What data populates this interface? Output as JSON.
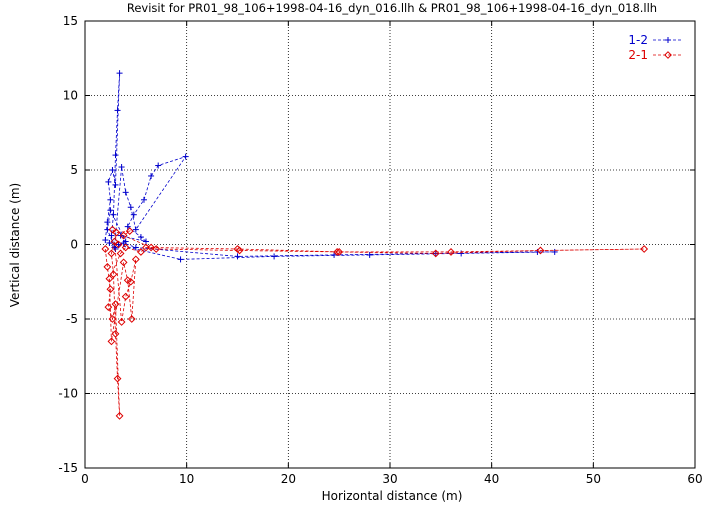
{
  "chart_data": {
    "type": "scatter",
    "title": "Revisit for PR01_98_106+1998-04-16_dyn_016.llh & PR01_98_106+1998-04-16_dyn_018.llh",
    "xlabel": "Horizontal distance (m)",
    "ylabel": "Vertical distance (m)",
    "xlim": [
      0,
      60
    ],
    "ylim": [
      -15,
      15
    ],
    "xticks": [
      "0",
      "10",
      "20",
      "30",
      "40",
      "50",
      "60"
    ],
    "yticks": [
      "-15",
      "-10",
      "-5",
      "0",
      "5",
      "10",
      "15"
    ],
    "grid": true,
    "legend_position": "top-right",
    "series": [
      {
        "name": "1-2",
        "color": "#0000cc",
        "marker": "plus",
        "linestyle": "dashed",
        "points": [
          [
            2.0,
            0.3
          ],
          [
            2.2,
            1.5
          ],
          [
            2.5,
            3.0
          ],
          [
            2.3,
            4.2
          ],
          [
            2.7,
            5.0
          ],
          [
            3.0,
            4.0
          ],
          [
            3.4,
            11.5
          ],
          [
            3.2,
            9.0
          ],
          [
            3.0,
            6.0
          ],
          [
            2.8,
            2.0
          ],
          [
            2.6,
            0.6
          ],
          [
            2.9,
            -0.2
          ],
          [
            3.6,
            5.2
          ],
          [
            4.0,
            3.5
          ],
          [
            4.5,
            2.5
          ],
          [
            5.0,
            1.0
          ],
          [
            9.9,
            5.9
          ],
          [
            7.2,
            5.3
          ],
          [
            6.5,
            4.6
          ],
          [
            5.8,
            3.0
          ],
          [
            4.8,
            2.0
          ],
          [
            4.2,
            1.2
          ],
          [
            5.5,
            0.5
          ],
          [
            6.0,
            0.2
          ],
          [
            3.5,
            0.6
          ],
          [
            4.0,
            0.2
          ],
          [
            2.5,
            2.3
          ],
          [
            2.2,
            1.0
          ],
          [
            3.0,
            -0.3
          ],
          [
            2.4,
            0.1
          ],
          [
            9.4,
            -1.0
          ],
          [
            18.6,
            -0.8
          ],
          [
            28.0,
            -0.7
          ],
          [
            37.0,
            -0.6
          ],
          [
            46.2,
            -0.5
          ],
          [
            44.5,
            -0.5
          ],
          [
            34.5,
            -0.6
          ],
          [
            24.5,
            -0.7
          ],
          [
            15.0,
            -0.8
          ],
          [
            5.0,
            -0.2
          ],
          [
            3.8,
            0.1
          ],
          [
            3.3,
            0.0
          ]
        ]
      },
      {
        "name": "2-1",
        "color": "#dd0000",
        "marker": "diamond",
        "linestyle": "dashed",
        "points": [
          [
            2.0,
            -0.3
          ],
          [
            2.2,
            -1.5
          ],
          [
            2.5,
            -3.0
          ],
          [
            2.3,
            -4.2
          ],
          [
            2.7,
            -5.0
          ],
          [
            3.0,
            -4.0
          ],
          [
            3.4,
            -11.5
          ],
          [
            3.2,
            -9.0
          ],
          [
            3.0,
            -6.0
          ],
          [
            2.8,
            -2.0
          ],
          [
            2.6,
            -0.6
          ],
          [
            2.9,
            0.2
          ],
          [
            3.6,
            -5.2
          ],
          [
            4.0,
            -3.5
          ],
          [
            4.5,
            -2.5
          ],
          [
            5.0,
            -1.0
          ],
          [
            4.6,
            -5.0
          ],
          [
            4.2,
            -2.4
          ],
          [
            3.8,
            -1.2
          ],
          [
            2.6,
            -6.5
          ],
          [
            2.4,
            -2.3
          ],
          [
            3.5,
            -0.6
          ],
          [
            4.0,
            -0.2
          ],
          [
            5.5,
            -0.5
          ],
          [
            6.0,
            -0.2
          ],
          [
            7.0,
            -0.3
          ],
          [
            15.2,
            -0.4
          ],
          [
            24.8,
            -0.5
          ],
          [
            34.5,
            -0.6
          ],
          [
            44.8,
            -0.4
          ],
          [
            55.0,
            -0.3
          ],
          [
            36.0,
            -0.5
          ],
          [
            25.0,
            -0.5
          ],
          [
            15.0,
            -0.3
          ],
          [
            6.5,
            -0.2
          ],
          [
            3.8,
            0.6
          ],
          [
            4.4,
            0.9
          ],
          [
            3.1,
            0.8
          ],
          [
            2.7,
            1.0
          ],
          [
            3.3,
            0.0
          ]
        ]
      }
    ]
  }
}
